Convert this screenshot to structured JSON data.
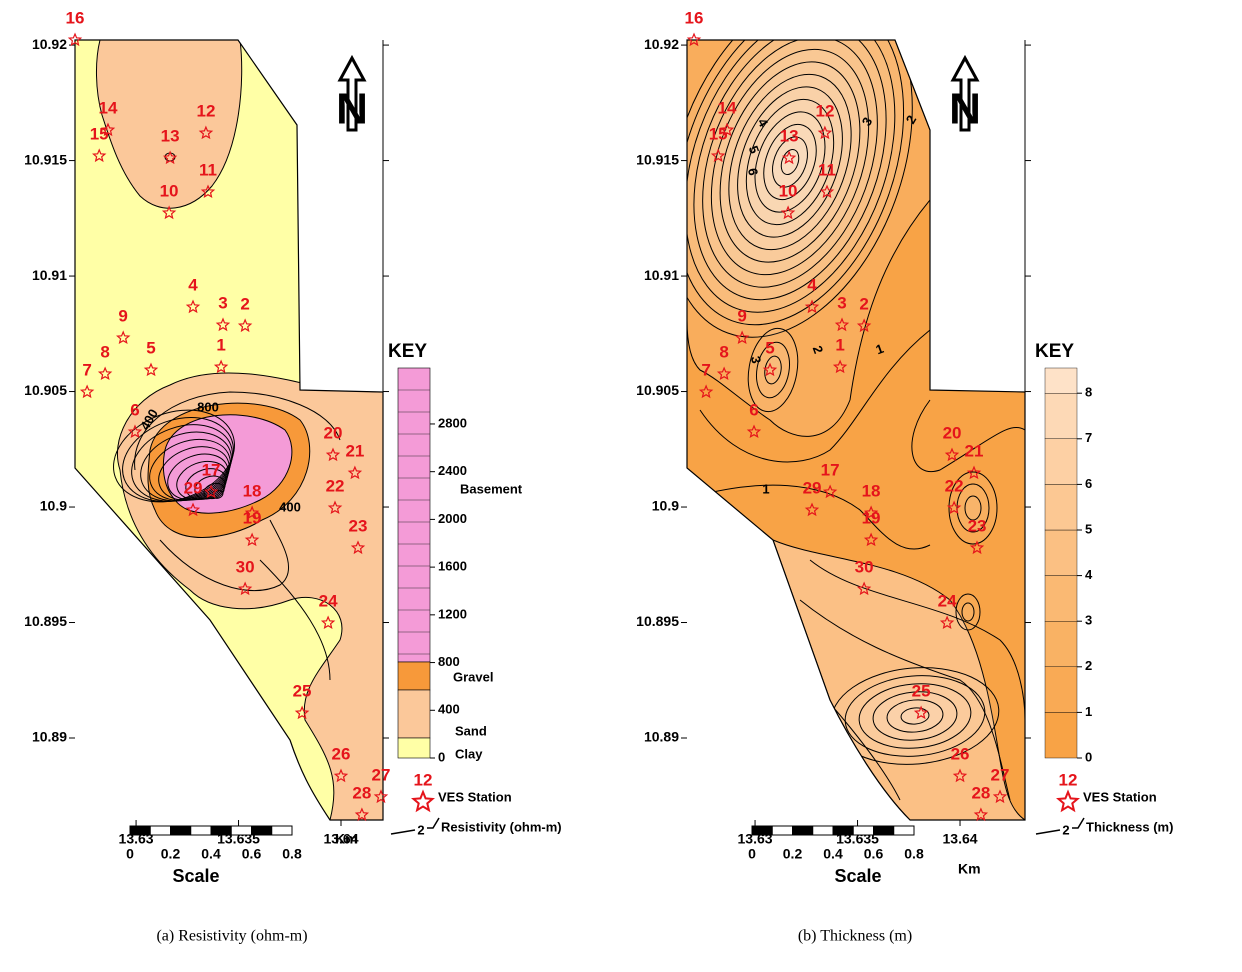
{
  "stations": [
    {
      "label": "1",
      "lon": 13.63415,
      "lat": 10.90606
    },
    {
      "label": "2",
      "lon": 13.63532,
      "lat": 10.90784
    },
    {
      "label": "3",
      "lon": 13.63424,
      "lat": 10.90788
    },
    {
      "label": "4",
      "lon": 13.63278,
      "lat": 10.90866
    },
    {
      "label": "5",
      "lon": 13.63073,
      "lat": 10.90593
    },
    {
      "label": "6",
      "lon": 13.62995,
      "lat": 10.90325
    },
    {
      "label": "7",
      "lon": 13.62761,
      "lat": 10.90498
    },
    {
      "label": "8",
      "lon": 13.62849,
      "lat": 10.90576
    },
    {
      "label": "9",
      "lon": 13.62937,
      "lat": 10.90732
    },
    {
      "label": "10",
      "lon": 13.63161,
      "lat": 10.91273
    },
    {
      "label": "11",
      "lon": 13.63351,
      "lat": 10.91364
    },
    {
      "label": "12",
      "lon": 13.63341,
      "lat": 10.91619
    },
    {
      "label": "13",
      "lon": 13.63166,
      "lat": 10.91511
    },
    {
      "label": "14",
      "lon": 13.62863,
      "lat": 10.91632
    },
    {
      "label": "15",
      "lon": 13.6282,
      "lat": 10.9152
    },
    {
      "label": "16",
      "lon": 13.62702,
      "lat": 10.92022
    },
    {
      "label": "17",
      "lon": 13.63366,
      "lat": 10.90065
    },
    {
      "label": "18",
      "lon": 13.63566,
      "lat": 10.89974
    },
    {
      "label": "19",
      "lon": 13.63566,
      "lat": 10.89857
    },
    {
      "label": "20",
      "lon": 13.63961,
      "lat": 10.90225
    },
    {
      "label": "21",
      "lon": 13.64068,
      "lat": 10.90147
    },
    {
      "label": "22",
      "lon": 13.63971,
      "lat": 10.89996
    },
    {
      "label": "23",
      "lon": 13.64083,
      "lat": 10.89823
    },
    {
      "label": "24",
      "lon": 13.63937,
      "lat": 10.89498
    },
    {
      "label": "25",
      "lon": 13.6381,
      "lat": 10.89108
    },
    {
      "label": "26",
      "lon": 13.64,
      "lat": 10.88835
    },
    {
      "label": "27",
      "lon": 13.64195,
      "lat": 10.88745
    },
    {
      "label": "28",
      "lon": 13.64102,
      "lat": 10.88667
    },
    {
      "label": "29",
      "lon": 13.63278,
      "lat": 10.89987
    },
    {
      "label": "30",
      "lon": 13.63532,
      "lat": 10.89645
    }
  ],
  "panels": [
    {
      "caption": "(a) Resistivity (ohm-m)",
      "xlim": [
        13.62702,
        13.64205
      ],
      "ylim": [
        10.88645,
        10.92022
      ],
      "xticks": [
        13.63,
        13.635,
        13.64
      ],
      "yticks": [
        10.89,
        10.895,
        10.9,
        10.905,
        10.91,
        10.915,
        10.92
      ],
      "north": "N",
      "key": {
        "title": "KEY",
        "ticks": [
          0,
          400,
          800,
          1200,
          1600,
          2000,
          2400,
          2800
        ],
        "classes": [
          "Basement",
          "Gravel",
          "Sand",
          "Clay"
        ]
      },
      "legend": {
        "station_label": "12",
        "station_text": "VES Station",
        "contour_label": "2",
        "contour_text": "Resistivity (ohm-m)"
      },
      "contour_labels": [
        "400",
        "800",
        "400"
      ],
      "scale": {
        "ticks": [
          0,
          0.2,
          0.4,
          0.6,
          0.8
        ],
        "unit": "Km",
        "title": "Scale"
      }
    },
    {
      "caption": "(b) Thickness (m)",
      "xlim": [
        13.62668,
        13.64317
      ],
      "ylim": [
        10.88645,
        10.92022
      ],
      "xticks": [
        13.63,
        13.635,
        13.64
      ],
      "yticks": [
        10.89,
        10.895,
        10.9,
        10.905,
        10.91,
        10.915,
        10.92
      ],
      "north": "N",
      "key": {
        "title": "KEY",
        "ticks": [
          0,
          1,
          2,
          3,
          4,
          5,
          6,
          7,
          8
        ],
        "classes": []
      },
      "legend": {
        "station_label": "12",
        "station_text": "VES Station",
        "contour_label": "2",
        "contour_text": "Thickness (m)"
      },
      "contour_labels": [
        "1",
        "2",
        "3",
        "3",
        "2",
        "4",
        "5",
        "6",
        "1"
      ],
      "scale": {
        "ticks": [
          0,
          0.2,
          0.4,
          0.6,
          0.8
        ],
        "unit": "Km",
        "title": "Scale"
      }
    }
  ]
}
